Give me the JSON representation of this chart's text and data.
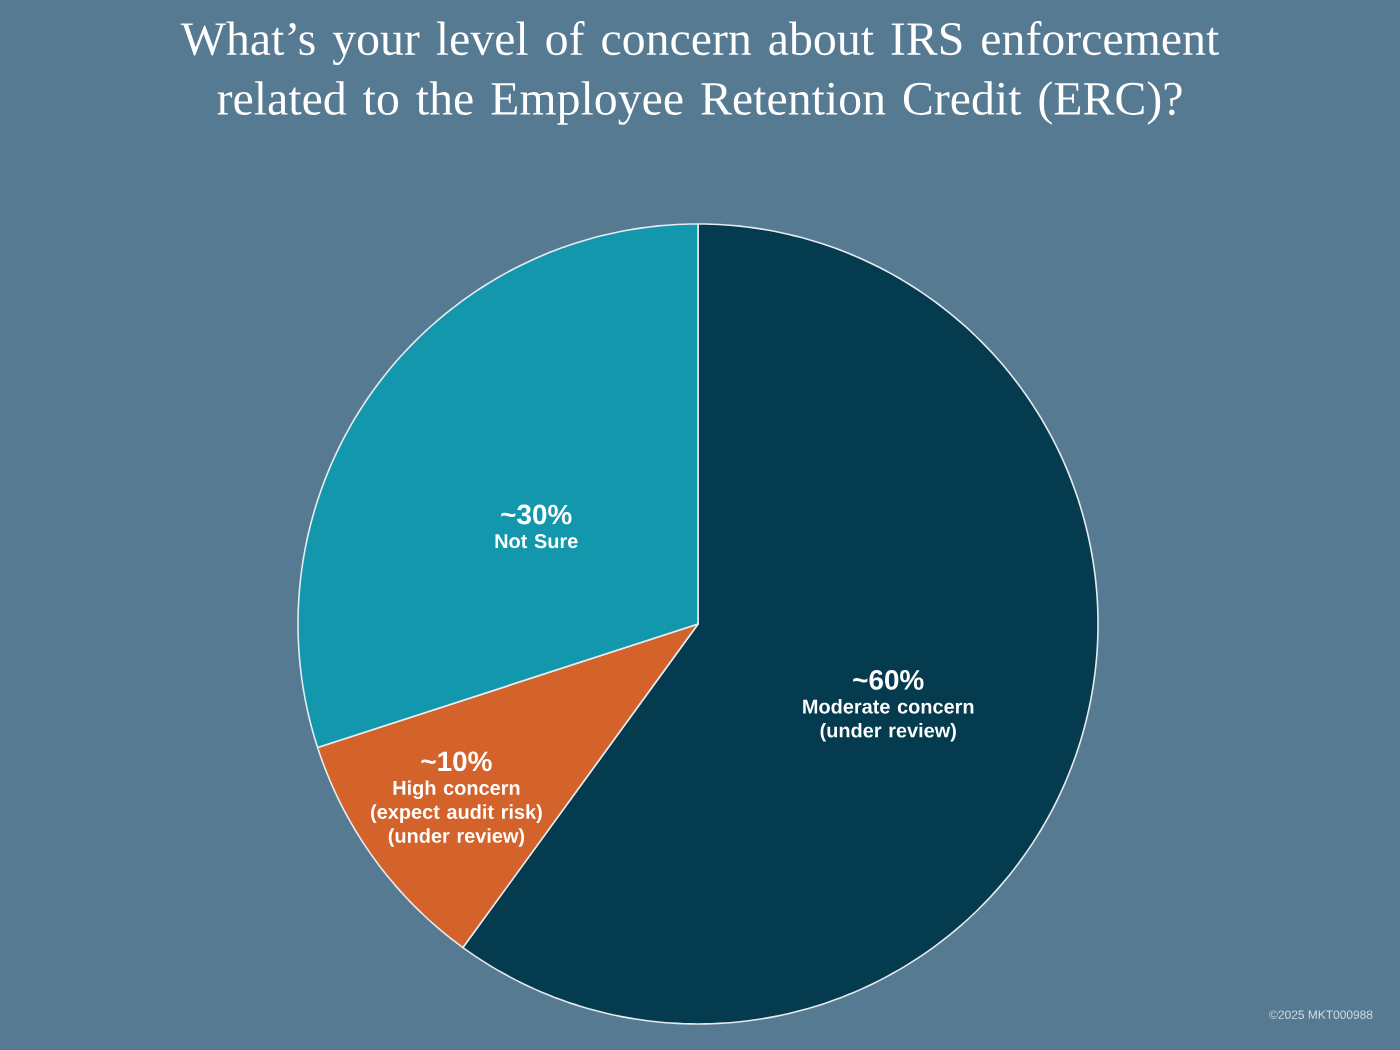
{
  "chart_data": {
    "type": "pie",
    "title": "What’s your level of concern about IRS enforcement related to the Employee Retention Credit (ERC)?",
    "categories": [
      "Moderate concern (under review)",
      "High concern (expect audit risk) (under review)",
      "Not Sure"
    ],
    "values": [
      60,
      10,
      30
    ],
    "value_labels": [
      "~60%",
      "~10%",
      "~30%"
    ],
    "colors": [
      "#053b4e",
      "#d4632b",
      "#1397ad"
    ],
    "annotations": [
      "©2025 MKT000988"
    ]
  }
}
